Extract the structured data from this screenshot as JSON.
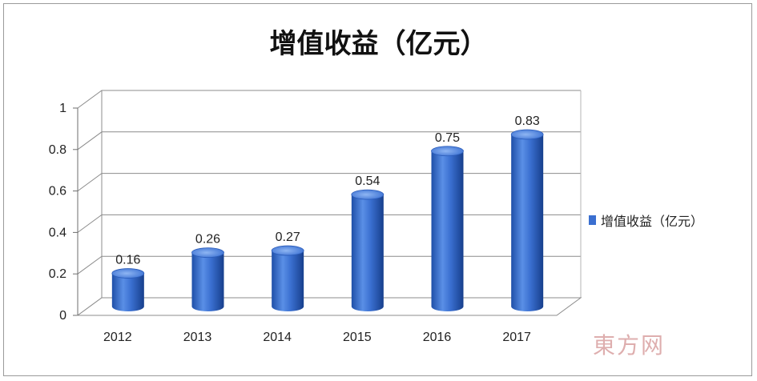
{
  "chart_data": {
    "type": "bar",
    "title": "增值收益（亿元）",
    "categories": [
      "2012",
      "2013",
      "2014",
      "2015",
      "2016",
      "2017"
    ],
    "series": [
      {
        "name": "增值收益（亿元）",
        "values": [
          0.16,
          0.26,
          0.27,
          0.54,
          0.75,
          0.83
        ]
      }
    ],
    "data_labels": [
      "0.16",
      "0.26",
      "0.27",
      "0.54",
      "0.75",
      "0.83"
    ],
    "y_ticks": [
      "0",
      "0.2",
      "0.4",
      "0.6",
      "0.8",
      "1"
    ],
    "ylim": [
      0,
      1
    ],
    "grid": true,
    "legend_position": "right",
    "bar_color": "#3a6fd0",
    "three_d": true
  },
  "watermark": "東方网"
}
